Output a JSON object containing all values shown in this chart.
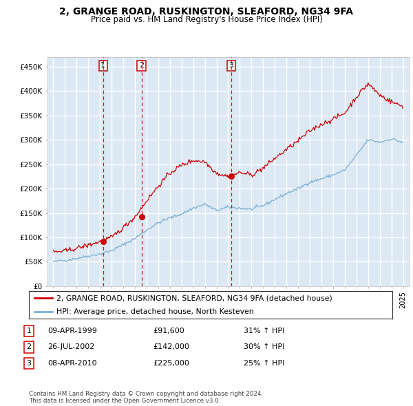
{
  "title": "2, GRANGE ROAD, RUSKINGTON, SLEAFORD, NG34 9FA",
  "subtitle": "Price paid vs. HM Land Registry's House Price Index (HPI)",
  "plot_bg_color": "#dce9f5",
  "grid_color": "#ffffff",
  "sale_points": [
    {
      "date_num": 1999.27,
      "price": 91600,
      "label": "1"
    },
    {
      "date_num": 2002.57,
      "price": 142000,
      "label": "2"
    },
    {
      "date_num": 2010.27,
      "price": 225000,
      "label": "3"
    }
  ],
  "vline_dates": [
    1999.27,
    2002.57,
    2010.27
  ],
  "legend_line1": "2, GRANGE ROAD, RUSKINGTON, SLEAFORD, NG34 9FA (detached house)",
  "legend_line2": "HPI: Average price, detached house, North Kesteven",
  "table_entries": [
    {
      "num": "1",
      "date": "09-APR-1999",
      "price": "£91,600",
      "change": "31% ↑ HPI"
    },
    {
      "num": "2",
      "date": "26-JUL-2002",
      "price": "£142,000",
      "change": "30% ↑ HPI"
    },
    {
      "num": "3",
      "date": "08-APR-2010",
      "price": "£225,000",
      "change": "25% ↑ HPI"
    }
  ],
  "footer": "Contains HM Land Registry data © Crown copyright and database right 2024.\nThis data is licensed under the Open Government Licence v3.0.",
  "ylim": [
    0,
    470000
  ],
  "xlim": [
    1994.5,
    2025.5
  ],
  "red_color": "#cc0000",
  "blue_color": "#7bafd4"
}
